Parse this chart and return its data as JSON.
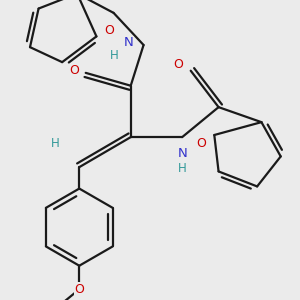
{
  "bg_color": "#ebebeb",
  "bond_color": "#1a1a1a",
  "N_color": "#3333cc",
  "O_color": "#cc0000",
  "H_color": "#339999",
  "lw": 1.6,
  "figsize": [
    3.0,
    3.0
  ],
  "dpi": 100,
  "xlim": [
    -1.0,
    5.5
  ],
  "ylim": [
    -3.5,
    3.5
  ]
}
